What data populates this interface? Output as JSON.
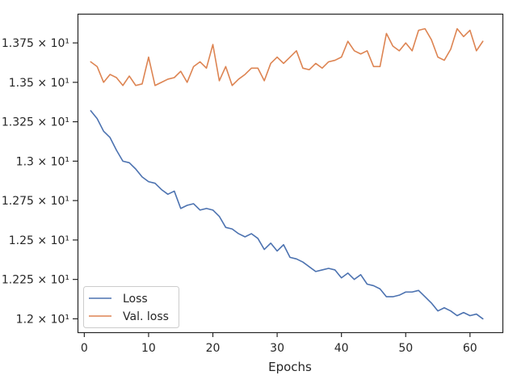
{
  "chart_data": {
    "type": "line",
    "title": "",
    "xlabel": "Epochs",
    "ylabel": "",
    "xlim": [
      -1.05,
      65.05
    ],
    "ylim": [
      11.915,
      13.935
    ],
    "xticks": [
      0,
      10,
      20,
      30,
      40,
      50,
      60
    ],
    "xtick_labels": [
      "0",
      "10",
      "20",
      "30",
      "40",
      "50",
      "60"
    ],
    "yticks": [
      12.0,
      12.25,
      12.5,
      12.75,
      13.0,
      13.25,
      13.5,
      13.75
    ],
    "ytick_labels": [
      "1.2 × 10¹",
      "1.225 × 10¹",
      "1.25 × 10¹",
      "1.275 × 10¹",
      "1.3 × 10¹",
      "1.325 × 10¹",
      "1.35 × 10¹",
      "1.375 × 10¹"
    ],
    "grid": false,
    "legend_position": "lower-left",
    "x": [
      1,
      2,
      3,
      4,
      5,
      6,
      7,
      8,
      9,
      10,
      11,
      12,
      13,
      14,
      15,
      16,
      17,
      18,
      19,
      20,
      21,
      22,
      23,
      24,
      25,
      26,
      27,
      28,
      29,
      30,
      31,
      32,
      33,
      34,
      35,
      36,
      37,
      38,
      39,
      40,
      41,
      42,
      43,
      44,
      45,
      46,
      47,
      48,
      49,
      50,
      51,
      52,
      53,
      54,
      55,
      56,
      57,
      58,
      59,
      60,
      61,
      62
    ],
    "series": [
      {
        "name": "Loss",
        "color": "#4c72b0",
        "values": [
          13.32,
          13.27,
          13.19,
          13.15,
          13.07,
          13.0,
          12.99,
          12.95,
          12.9,
          12.87,
          12.86,
          12.82,
          12.79,
          12.81,
          12.7,
          12.72,
          12.73,
          12.69,
          12.7,
          12.69,
          12.65,
          12.58,
          12.57,
          12.54,
          12.52,
          12.54,
          12.51,
          12.44,
          12.48,
          12.43,
          12.47,
          12.39,
          12.38,
          12.36,
          12.33,
          12.3,
          12.31,
          12.32,
          12.31,
          12.26,
          12.29,
          12.25,
          12.28,
          12.22,
          12.21,
          12.19,
          12.14,
          12.14,
          12.15,
          12.17,
          12.17,
          12.18,
          12.14,
          12.1,
          12.05,
          12.07,
          12.05,
          12.02,
          12.04,
          12.02,
          12.03,
          12.0
        ]
      },
      {
        "name": "Val. loss",
        "color": "#dd8452",
        "values": [
          13.63,
          13.6,
          13.5,
          13.55,
          13.53,
          13.48,
          13.54,
          13.48,
          13.49,
          13.66,
          13.48,
          13.5,
          13.52,
          13.53,
          13.57,
          13.5,
          13.6,
          13.63,
          13.59,
          13.74,
          13.51,
          13.6,
          13.48,
          13.52,
          13.55,
          13.59,
          13.59,
          13.51,
          13.62,
          13.66,
          13.62,
          13.66,
          13.7,
          13.59,
          13.58,
          13.62,
          13.59,
          13.63,
          13.64,
          13.66,
          13.76,
          13.7,
          13.68,
          13.7,
          13.6,
          13.6,
          13.81,
          13.73,
          13.7,
          13.75,
          13.7,
          13.83,
          13.84,
          13.77,
          13.66,
          13.64,
          13.71,
          13.84,
          13.79,
          13.83,
          13.7,
          13.76
        ]
      }
    ]
  }
}
